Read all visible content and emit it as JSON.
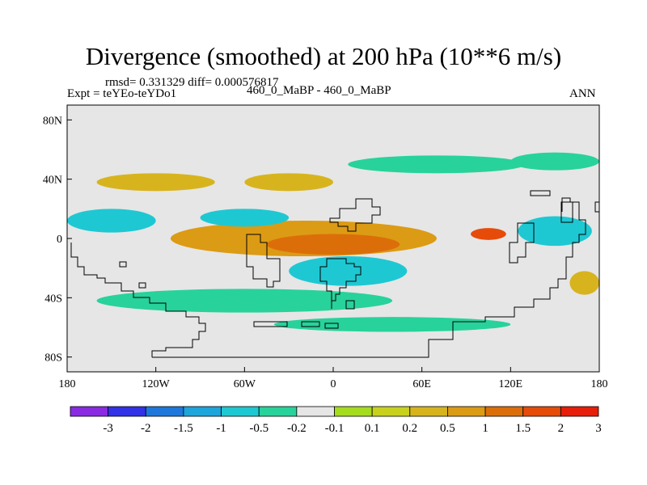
{
  "title": "Divergence (smoothed) at 200 hPa (10**6 m/s)",
  "stats": "rmsd= 0.331329 diff= 0.000576817",
  "experiment": "Expt = teYEo-teYDo1",
  "case": "460_0_MaBP - 460_0_MaBP",
  "season": "ANN",
  "chart_data": {
    "type": "heatmap",
    "title": "Divergence (smoothed) at 200 hPa (10**6 m/s)",
    "x_ticks": [
      "180",
      "120W",
      "60W",
      "0",
      "60E",
      "120E",
      "180"
    ],
    "y_ticks": [
      "80N",
      "40N",
      "0",
      "40S",
      "80S"
    ],
    "xlim": [
      -180,
      180
    ],
    "ylim": [
      -90,
      90
    ],
    "colorbar": {
      "colors": [
        "#8a2be2",
        "#3232e6",
        "#1e78dc",
        "#1ea5dc",
        "#1ec8d2",
        "#28d29b",
        "#e6e6e6",
        "#a5dc1e",
        "#c8d21e",
        "#d7b41e",
        "#dc9b14",
        "#dc6e0a",
        "#e64b0a",
        "#e61e0a"
      ],
      "labels": [
        "-3",
        "-2",
        "-1.5",
        "-1",
        "-0.5",
        "-0.2",
        "-0.1",
        "0.1",
        "0.2",
        "0.5",
        "1",
        "1.5",
        "2",
        "3"
      ]
    },
    "blobs": [
      {
        "lon": -120,
        "lat": 38,
        "rlon": 40,
        "rlat": 6,
        "level": "0.2"
      },
      {
        "lon": -30,
        "lat": 38,
        "rlon": 30,
        "rlat": 6,
        "level": "0.2"
      },
      {
        "lon": -20,
        "lat": 0,
        "rlon": 90,
        "rlat": 12,
        "level": "0.5"
      },
      {
        "lon": 0,
        "lat": -4,
        "rlon": 45,
        "rlat": 7,
        "level": "1"
      },
      {
        "lon": 105,
        "lat": 3,
        "rlon": 12,
        "rlat": 4,
        "level": "1.5"
      },
      {
        "lon": -150,
        "lat": 12,
        "rlon": 30,
        "rlat": 8,
        "level": "-0.5"
      },
      {
        "lon": -60,
        "lat": 14,
        "rlon": 30,
        "rlat": 6,
        "level": "-0.5"
      },
      {
        "lon": 10,
        "lat": -22,
        "rlon": 40,
        "rlat": 10,
        "level": "-0.5"
      },
      {
        "lon": 150,
        "lat": 5,
        "rlon": 25,
        "rlat": 10,
        "level": "-0.5"
      },
      {
        "lon": -60,
        "lat": -42,
        "rlon": 100,
        "rlat": 8,
        "level": "-0.2"
      },
      {
        "lon": 40,
        "lat": -58,
        "rlon": 80,
        "rlat": 5,
        "level": "-0.2"
      },
      {
        "lon": 70,
        "lat": 50,
        "rlon": 60,
        "rlat": 6,
        "level": "-0.2"
      },
      {
        "lon": 150,
        "lat": 52,
        "rlon": 30,
        "rlat": 6,
        "level": "-0.2"
      },
      {
        "lon": 170,
        "lat": -30,
        "rlon": 10,
        "rlat": 8,
        "level": "0.2"
      }
    ]
  }
}
